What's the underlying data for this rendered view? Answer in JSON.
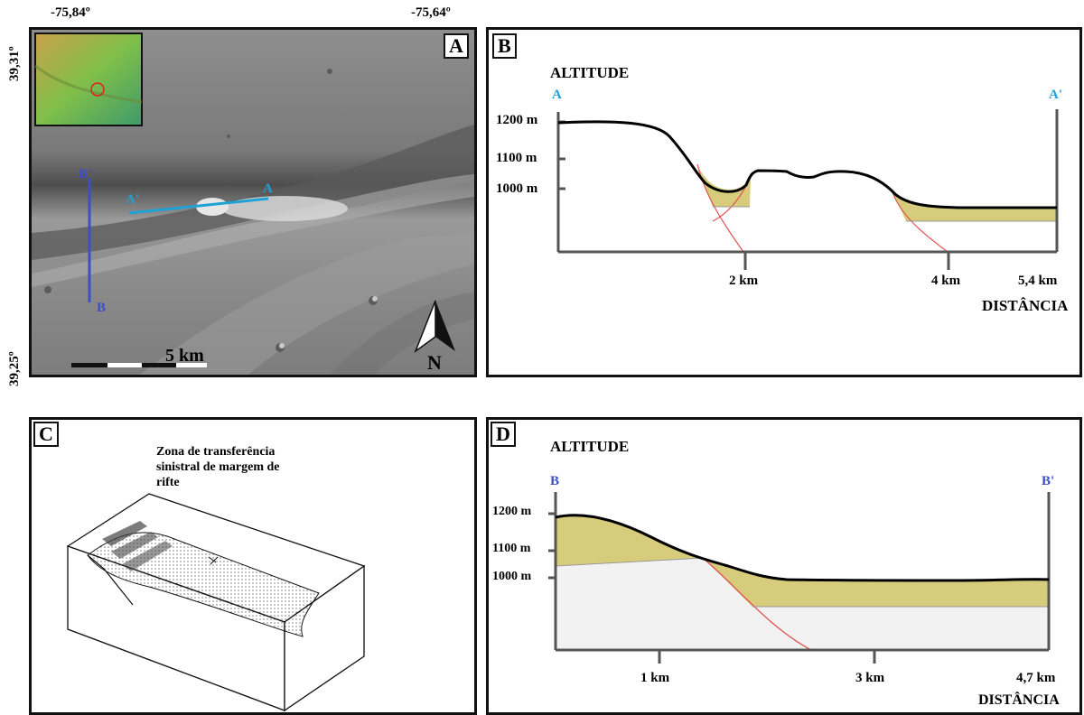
{
  "panel_a": {
    "tag": "A",
    "lon_left": "-75,84º",
    "lon_right": "-75,64º",
    "lat_top": "39,31º",
    "lat_bottom": "39,25º",
    "profile_ab_start": "B'",
    "profile_ab_end": "B",
    "profile_aa_start": "A'",
    "profile_aa_end": "A",
    "scale_label": "5 km",
    "north_label": "N"
  },
  "panel_b": {
    "tag": "B",
    "y_title": "ALTITUDE",
    "start_label": "A",
    "end_label": "A'",
    "y_ticks": [
      "1200 m",
      "1100 m",
      "1000 m"
    ],
    "x_ticks": [
      "2 km",
      "4 km",
      "5,4 km"
    ],
    "x_title": "DISTÂNCIA"
  },
  "panel_c": {
    "tag": "C",
    "caption": [
      "Zona de transferência",
      "sinistral de margem de",
      "rifte"
    ]
  },
  "panel_d": {
    "tag": "D",
    "y_title": "ALTITUDE",
    "start_label": "B",
    "end_label": "B'",
    "y_ticks": [
      "1200 m",
      "1100 m",
      "1000 m"
    ],
    "x_ticks": [
      "1 km",
      "3 km",
      "4,7 km"
    ],
    "x_title": "DISTÂNCIA"
  },
  "colors": {
    "fill_deposit": "#d6cc7c",
    "fault_line": "#e05050",
    "profile_a": "#1fa3d6",
    "profile_b": "#3a4fc9"
  }
}
